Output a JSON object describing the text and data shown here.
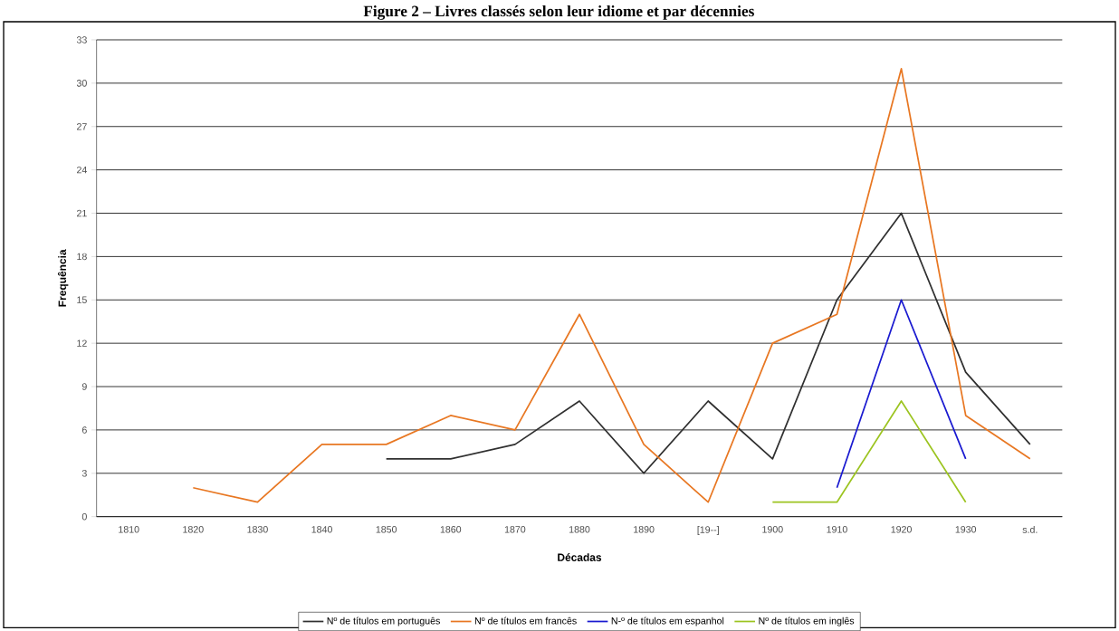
{
  "chart_data": {
    "type": "line",
    "title": "Figure 2 – Livres classés selon leur idiome et par décennies",
    "xlabel": "Décadas",
    "ylabel": "Frequência",
    "categories": [
      "1810",
      "1820",
      "1830",
      "1840",
      "1850",
      "1860",
      "1870",
      "1880",
      "1890",
      "[19--]",
      "1900",
      "1910",
      "1920",
      "1930",
      "s.d."
    ],
    "series": [
      {
        "name": "Nº de títulos em português",
        "color": "#303030",
        "values": [
          null,
          null,
          null,
          null,
          4,
          4,
          5,
          8,
          3,
          8,
          4,
          15,
          21,
          10,
          5
        ]
      },
      {
        "name": "Nº de títulos em francês",
        "color": "#e87722",
        "values": [
          null,
          2,
          1,
          5,
          5,
          7,
          6,
          14,
          5,
          1,
          12,
          14,
          31,
          7,
          4
        ]
      },
      {
        "name": "N-º de títulos em espanhol",
        "color": "#1a1ad0",
        "values": [
          null,
          null,
          null,
          null,
          null,
          null,
          null,
          null,
          null,
          null,
          null,
          2,
          15,
          4,
          null
        ]
      },
      {
        "name": "Nº de títulos em inglês",
        "color": "#9cc420",
        "values": [
          null,
          null,
          null,
          null,
          null,
          null,
          null,
          null,
          null,
          null,
          1,
          1,
          8,
          1,
          null
        ]
      }
    ],
    "ylim": [
      0,
      33
    ],
    "yticks": [
      0,
      3,
      6,
      9,
      12,
      15,
      18,
      21,
      24,
      27,
      30,
      33
    ],
    "grid": "y",
    "legend": "bottom",
    "marker": "none",
    "line_style": "solid"
  }
}
